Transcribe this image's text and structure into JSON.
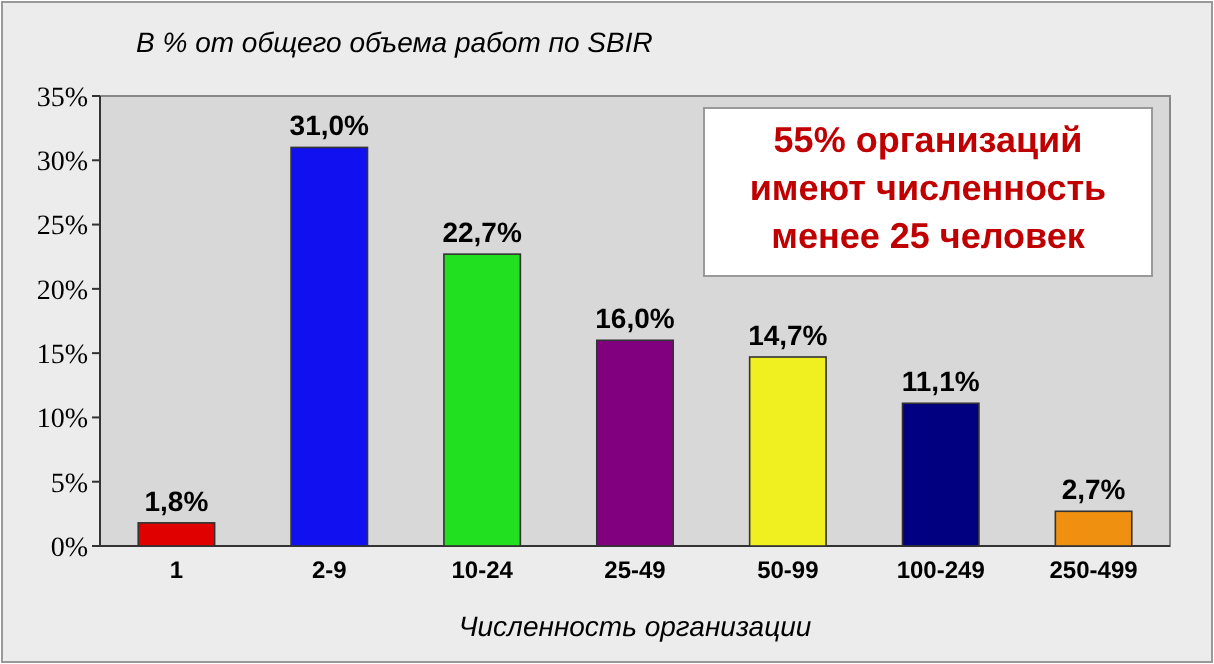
{
  "chart_data": {
    "type": "bar",
    "title": "В % от общего объема работ по SBIR",
    "xlabel": "Численность организации",
    "categories": [
      "1",
      "2-9",
      "10-24",
      "25-49",
      "50-99",
      "100-249",
      "250-499"
    ],
    "values": [
      1.8,
      31.0,
      22.7,
      16.0,
      14.7,
      11.1,
      2.7
    ],
    "colors": [
      "#e00000",
      "#1010f0",
      "#20e020",
      "#800080",
      "#f0f020",
      "#000080",
      "#f09010"
    ],
    "value_labels": [
      "1,8%",
      "31,0%",
      "22,7%",
      "16,0%",
      "14,7%",
      "11,1%",
      "2,7%"
    ],
    "ylim": [
      0,
      35
    ],
    "yticks": [
      {
        "value": 0,
        "label": "0%"
      },
      {
        "value": 5,
        "label": "5%"
      },
      {
        "value": 10,
        "label": "10%"
      },
      {
        "value": 15,
        "label": "15%"
      },
      {
        "value": 20,
        "label": "20%"
      },
      {
        "value": 25,
        "label": "25%"
      },
      {
        "value": 30,
        "label": "30%"
      },
      {
        "value": 35,
        "label": "35%"
      }
    ],
    "annotations": [
      "55% организаций\nимеют численность\nменее 25 человек"
    ],
    "grid": false
  }
}
